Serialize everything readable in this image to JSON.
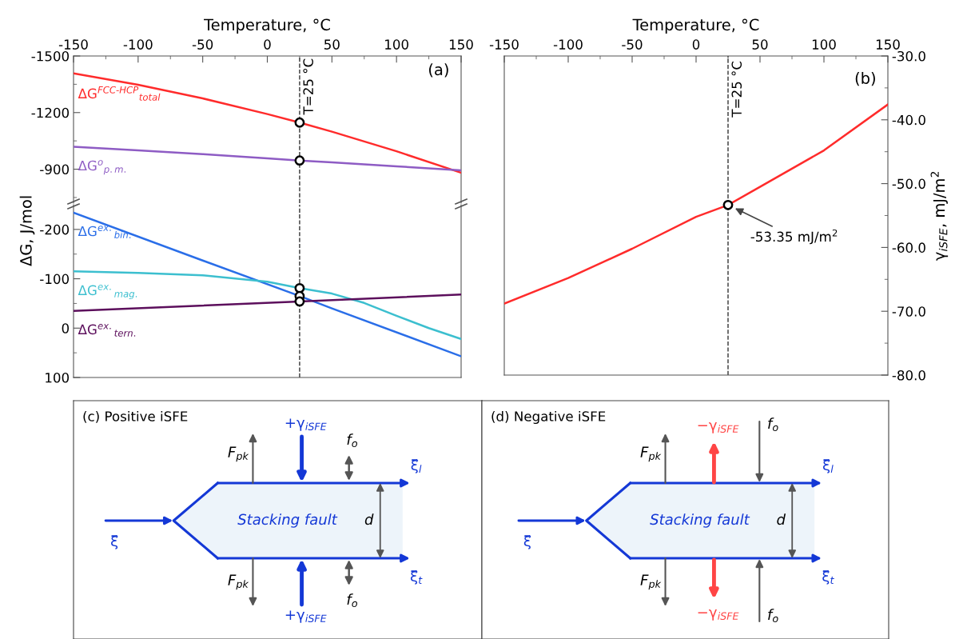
{
  "chart_data": [
    {
      "type": "line",
      "xlabel": "Temperature, °C",
      "xlim": [
        -150,
        150
      ],
      "xticks": [
        -150,
        -100,
        -50,
        0,
        50,
        100,
        150,
        {
          "value": -125,
          "label": null
        },
        {
          "value": -75,
          "label": null
        },
        {
          "value": -25,
          "label": null
        },
        {
          "value": 25,
          "label": null
        },
        {
          "value": 75,
          "label": null
        },
        {
          "value": 125,
          "label": null
        }
      ],
      "ylim": [
        -720,
        -1500
      ],
      "yticks": [
        -1500,
        -1200,
        -900,
        {
          "value": -1350,
          "label": null
        },
        {
          "value": -1050,
          "label": null
        },
        {
          "value": -750,
          "label": null
        }
      ],
      "series": [
        {
          "name": "ΔG$^{FCC‑HCP}$$_{total}$",
          "color": "#ff2b2b",
          "x": [
            -150,
            -100,
            -50,
            0,
            25,
            50,
            100,
            150
          ],
          "values": [
            -1408,
            -1347,
            -1275,
            -1192,
            -1147,
            -1099,
            -995,
            -881
          ]
        },
        {
          "name": "ΔG$^{o}$$_{p.m.}$",
          "color": "#8e5cc4",
          "x": [
            -150,
            -100,
            -50,
            0,
            25,
            50,
            100,
            150
          ],
          "values": [
            -1019,
            -1000,
            -980,
            -957,
            -946,
            -936,
            -915,
            -894
          ]
        },
        {
          "type": "scatter",
          "marker": "circle",
          "color": "#000000",
          "x": [
            25,
            25
          ],
          "values": [
            -1147,
            -946
          ]
        }
      ],
      "ref_lines": [
        {
          "axis": "x",
          "value": 25,
          "label": "T=25 °C",
          "line_style": "dashed",
          "color": "#333333"
        }
      ],
      "annotations": [
        "(a)"
      ]
    },
    {
      "type": "line",
      "ylabel": "ΔG, J/mol",
      "xlim": [
        -150,
        150
      ],
      "tick_labels": "y",
      "ylim": [
        100,
        -250
      ],
      "yticks": [
        -200,
        -100,
        0,
        100,
        {
          "value": -150,
          "label": null
        },
        {
          "value": -50,
          "label": null
        },
        {
          "value": 50,
          "label": null
        }
      ],
      "series": [
        {
          "name": "ΔG$^{ex.}$$_{bin.}$",
          "color": "#2a6ee8",
          "x": [
            -150,
            -50,
            25,
            50,
            150
          ],
          "values": [
            -234,
            -137,
            -65,
            -40,
            57
          ]
        },
        {
          "name": "ΔG$^{ex.}$$_{mag.}$",
          "color": "#3cbfcf",
          "x": [
            -150,
            -100,
            -50,
            0,
            25,
            50,
            75,
            100,
            125,
            150
          ],
          "values": [
            -115,
            -112,
            -107,
            -94,
            -81,
            -70,
            -51,
            -25,
            0,
            22
          ]
        },
        {
          "name": "ΔG$^{ex.}$$_{tern.}$",
          "color": "#5c0f5c",
          "x": [
            -150,
            25,
            150
          ],
          "values": [
            -35,
            -54,
            -68
          ]
        },
        {
          "type": "scatter",
          "marker": "circle",
          "color": "#000000",
          "x": [
            25,
            25,
            25
          ],
          "values": [
            -81,
            -65,
            -54
          ]
        }
      ],
      "ref_lines": [
        {
          "axis": "x",
          "value": 25,
          "line_style": "dashed",
          "color": "#333333"
        }
      ]
    },
    {
      "type": "line",
      "xlabel": "Temperature, °C",
      "ylabel": "γ$_{iSFE}$, mJ/m$^{2}$",
      "xlim": [
        -150,
        150
      ],
      "xticks": [
        -150,
        -100,
        -50,
        0,
        50,
        100,
        150,
        {
          "value": -125,
          "label": null
        },
        {
          "value": -75,
          "label": null
        },
        {
          "value": -25,
          "label": null
        },
        {
          "value": 25,
          "label": null
        },
        {
          "value": 75,
          "label": null
        },
        {
          "value": 125,
          "label": null
        }
      ],
      "ylim": [
        -80,
        -30
      ],
      "yticks": [
        {
          "value": -30,
          "label": "-30.0"
        },
        {
          "value": -40,
          "label": "-40.0"
        },
        {
          "value": -50,
          "label": "-50.0"
        },
        {
          "value": -60,
          "label": "-60.0"
        },
        {
          "value": -70,
          "label": "-70.0"
        },
        {
          "value": -80,
          "label": "-80.0"
        },
        {
          "value": -35,
          "label": null
        },
        {
          "value": -45,
          "label": null
        },
        {
          "value": -55,
          "label": null
        },
        {
          "value": -65,
          "label": null
        },
        {
          "value": -75,
          "label": null
        }
      ],
      "series": [
        {
          "color": "#ff2b2b",
          "x": [
            -150,
            -100,
            -50,
            0,
            25,
            50,
            100,
            150
          ],
          "values": [
            -68.8,
            -64.8,
            -60.2,
            -55.2,
            -53.35,
            -50.5,
            -44.8,
            -37.6
          ]
        },
        {
          "type": "scatter",
          "marker": "circle",
          "color": "#000000",
          "x": [
            25
          ],
          "values": [
            -53.35
          ]
        }
      ],
      "ref_lines": [
        {
          "axis": "x",
          "value": 25,
          "label": "T=25 °C",
          "line_style": "dashed",
          "color": "#333333"
        }
      ],
      "annotations": [
        "(b)",
        {
          "text": "-53.35 mJ/m$^{2}$",
          "x": 25,
          "y": -53.35
        }
      ]
    },
    {
      "type": "other",
      "annotations": [
        "(c) Positive iSFE",
        "F$_{pk}$",
        "+γ$_{iSFE}$",
        "f$_{o}$",
        "ξ⃗$_{l}$",
        "ξ⃗",
        "Stacking fault",
        "d",
        "F$_{pk}$",
        "+γ$_{iSFE}$",
        "f$_{o}$",
        "ξ⃗$_{t}$"
      ]
    },
    {
      "type": "other",
      "annotations": [
        "(d) Negative iSFE",
        "F$_{pk}$",
        "−γ$_{iSFE}$",
        "f$_{o}$",
        "ξ⃗$_{l}$",
        "ξ⃗",
        "Stacking fault",
        "d",
        "F$_{pk}$",
        "−γ$_{iSFE}$",
        "f$_{o}$",
        "ξ⃗$_{t}$"
      ]
    }
  ]
}
